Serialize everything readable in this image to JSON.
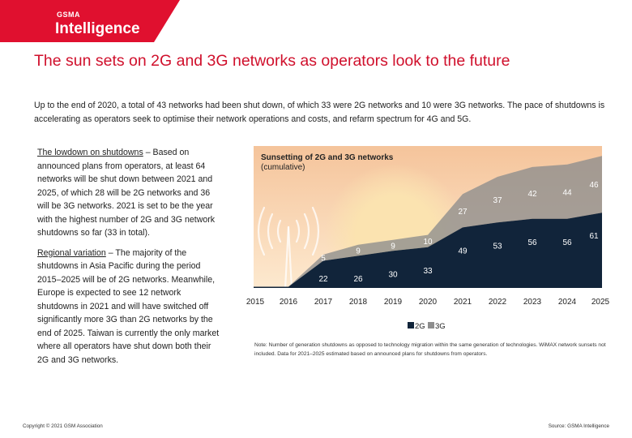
{
  "brand": {
    "top": "GSMA",
    "name": "Intelligence",
    "color": "#e0102f"
  },
  "page_title": "The sun sets on 2G and 3G networks as operators look to the future",
  "intro": "Up to the end of 2020, a total of 43 networks had been shut down, of which 33 were 2G networks and 10 were 3G networks. The pace of shutdowns is accelerating as operators seek to optimise their network operations and costs, and refarm spectrum for 4G and 5G.",
  "sections": [
    {
      "heading": "The lowdown on shutdowns",
      "body": " – Based on announced plans from operators, at least 64 networks will be shut down between 2021 and 2025, of which 28 will be 2G networks and 36 will be 3G networks. 2021 is set to be the year with the highest number of 2G and 3G network shutdowns so far (33 in total)."
    },
    {
      "heading": "Regional variation",
      "body": " – The majority of the shutdowns in Asia Pacific during the period 2015–2025 will be of 2G networks. Meanwhile, Europe is expected to see 12 network shutdowns in 2021 and will have switched off significantly more 3G than 2G networks by the end of 2025. Taiwan is currently the only market where all operators have shut down both their 2G and 3G networks."
    }
  ],
  "chart_data": {
    "type": "area",
    "stacked": true,
    "title": "Sunsetting of 2G and 3G networks",
    "subtitle": "(cumulative)",
    "x": [
      "2015",
      "2016",
      "2017",
      "2018",
      "2019",
      "2020",
      "2021",
      "2022",
      "2023",
      "2024",
      "2025"
    ],
    "series": [
      {
        "name": "2G",
        "values": [
          1,
          1,
          22,
          26,
          30,
          33,
          49,
          53,
          56,
          56,
          61
        ],
        "labels": [
          "",
          "",
          "22",
          "26",
          "30",
          "33",
          "49",
          "53",
          "56",
          "56",
          "61"
        ],
        "color": "#11243a"
      },
      {
        "name": "3G",
        "values": [
          0,
          0,
          5,
          9,
          9,
          10,
          27,
          37,
          42,
          44,
          46
        ],
        "labels": [
          "",
          "",
          "5",
          "9",
          "9",
          "10",
          "27",
          "37",
          "42",
          "44",
          "46"
        ],
        "color": "#8d8d8d"
      }
    ],
    "ylim": [
      0,
      115
    ],
    "legend_position": "bottom",
    "colors": {
      "sky_top": "#f5c49b",
      "sky_bottom": "#fde9cf",
      "sun": "#fbe3b0"
    }
  },
  "legend": [
    {
      "label": "2G",
      "color": "#11243a"
    },
    {
      "label": "3G",
      "color": "#8d8d8d"
    }
  ],
  "note": "Note: Number of generation shutdowns as opposed to technology migration within the same generation of technologies. WiMAX network sunsets not included. Data for 2021–2025 estimated based on announced plans for shutdowns from operators.",
  "copyright": "Copyright © 2021 GSM Association",
  "source": "Source: GSMA Intelligence"
}
